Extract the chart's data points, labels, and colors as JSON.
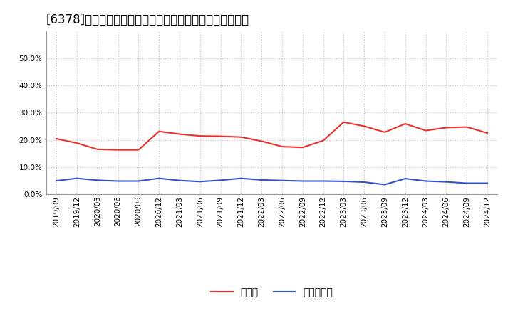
{
  "title": "[6378]　現頒金、有利子負債の総資産に対する比率の推移",
  "x_labels": [
    "2019/09",
    "2019/12",
    "2020/03",
    "2020/06",
    "2020/09",
    "2020/12",
    "2021/03",
    "2021/06",
    "2021/09",
    "2021/12",
    "2022/03",
    "2022/06",
    "2022/09",
    "2022/12",
    "2023/03",
    "2023/06",
    "2023/09",
    "2023/12",
    "2024/03",
    "2024/06",
    "2024/09",
    "2024/12"
  ],
  "cash_ratio": [
    0.204,
    0.188,
    0.165,
    0.163,
    0.163,
    0.231,
    0.221,
    0.214,
    0.213,
    0.21,
    0.195,
    0.175,
    0.172,
    0.197,
    0.265,
    0.25,
    0.228,
    0.259,
    0.234,
    0.245,
    0.247,
    0.225
  ],
  "debt_ratio": [
    0.049,
    0.058,
    0.051,
    0.048,
    0.048,
    0.058,
    0.05,
    0.046,
    0.051,
    0.058,
    0.052,
    0.05,
    0.048,
    0.048,
    0.047,
    0.044,
    0.035,
    0.057,
    0.048,
    0.045,
    0.04,
    0.04
  ],
  "cash_color": "#e8312a",
  "debt_color": "#3252c8",
  "background_color": "#ffffff",
  "plot_bg_color": "#ffffff",
  "grid_color": "#bbbbbb",
  "legend_cash": "現頒金",
  "legend_debt": "有利子負債",
  "ylim": [
    0.0,
    0.6
  ],
  "yticks": [
    0.0,
    0.1,
    0.2,
    0.3,
    0.4,
    0.5
  ],
  "title_fontsize": 12,
  "tick_fontsize": 7.5,
  "legend_fontsize": 10,
  "line_width": 1.5
}
